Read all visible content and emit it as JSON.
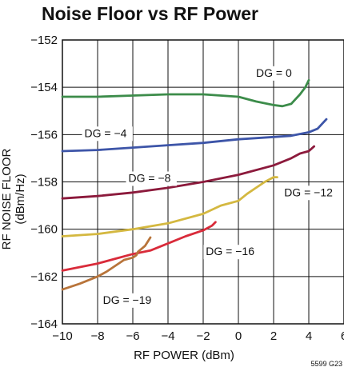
{
  "chart_data": {
    "type": "line",
    "title": "Noise Floor vs RF Power",
    "xlabel": "RF POWER (dBm)",
    "ylabel": "RF NOISE FLOOR (dBm/Hz)",
    "xlim": [
      -10,
      6
    ],
    "ylim": [
      -164,
      -152
    ],
    "xticks": [
      -10,
      -8,
      -6,
      -4,
      -2,
      0,
      2,
      4,
      6
    ],
    "yticks": [
      -152,
      -154,
      -156,
      -158,
      -160,
      -162,
      -164
    ],
    "xtick_labels": [
      "−10",
      "−8",
      "−6",
      "−4",
      "−2",
      "0",
      "2",
      "4",
      "6"
    ],
    "ytick_labels": [
      "−152",
      "−154",
      "−156",
      "−158",
      "−160",
      "−162",
      "−164"
    ],
    "grid": true,
    "figure_code": "5599 G23",
    "series": [
      {
        "name": "DG = 0",
        "color": "#3c8c4a",
        "x": [
          -10,
          -8,
          -6,
          -4,
          -2,
          0,
          1,
          2,
          2.5,
          3,
          3.5,
          3.8,
          4
        ],
        "y": [
          -154.4,
          -154.4,
          -154.35,
          -154.3,
          -154.3,
          -154.4,
          -154.6,
          -154.75,
          -154.8,
          -154.7,
          -154.3,
          -154,
          -153.7
        ]
      },
      {
        "name": "DG = −4",
        "color": "#3d55a8",
        "x": [
          -10,
          -8,
          -6,
          -4,
          -2,
          0,
          2,
          3,
          4,
          4.5,
          5
        ],
        "y": [
          -156.7,
          -156.65,
          -156.55,
          -156.45,
          -156.35,
          -156.2,
          -156.1,
          -156.05,
          -155.9,
          -155.75,
          -155.35
        ]
      },
      {
        "name": "DG = −8",
        "color": "#8c1a3c",
        "x": [
          -10,
          -8,
          -6,
          -4,
          -2,
          0,
          2,
          3,
          3.5,
          4,
          4.3
        ],
        "y": [
          -158.7,
          -158.6,
          -158.45,
          -158.25,
          -158,
          -157.7,
          -157.3,
          -157,
          -156.8,
          -156.7,
          -156.5
        ]
      },
      {
        "name": "DG = −12",
        "color": "#d4b840",
        "x": [
          -10,
          -8,
          -6,
          -4,
          -2,
          -1,
          0,
          0.5,
          1,
          1.5,
          2,
          2.2
        ],
        "y": [
          -160.3,
          -160.2,
          -160,
          -159.75,
          -159.35,
          -159.0,
          -158.8,
          -158.5,
          -158.25,
          -158.0,
          -157.8,
          -157.8
        ]
      },
      {
        "name": "DG = −16",
        "color": "#d92b3a",
        "x": [
          -10,
          -9,
          -8,
          -7,
          -6,
          -5,
          -4,
          -3,
          -2,
          -1.5,
          -1.3
        ],
        "y": [
          -161.75,
          -161.6,
          -161.45,
          -161.25,
          -161.05,
          -160.9,
          -160.6,
          -160.3,
          -160.05,
          -159.85,
          -159.7
        ]
      },
      {
        "name": "DG = −19",
        "color": "#b8743a",
        "x": [
          -10,
          -9,
          -8,
          -7.5,
          -7,
          -6.5,
          -6,
          -5.8,
          -5.7,
          -5.3,
          -5
        ],
        "y": [
          -162.55,
          -162.3,
          -162.0,
          -161.8,
          -161.55,
          -161.3,
          -161.2,
          -161.1,
          -160.95,
          -160.7,
          -160.35
        ]
      }
    ],
    "annotations": [
      {
        "text": "DG = 0",
        "x": 1.0,
        "y": -153.55
      },
      {
        "text": "DG = −4",
        "x": -8.75,
        "y": -156.1
      },
      {
        "text": "DG = −8",
        "x": -6.25,
        "y": -158.0
      },
      {
        "text": "DG = −12",
        "x": 2.6,
        "y": -158.6
      },
      {
        "text": "DG = −16",
        "x": -1.85,
        "y": -161.1
      },
      {
        "text": "DG = −19",
        "x": -7.7,
        "y": -163.15
      }
    ]
  }
}
